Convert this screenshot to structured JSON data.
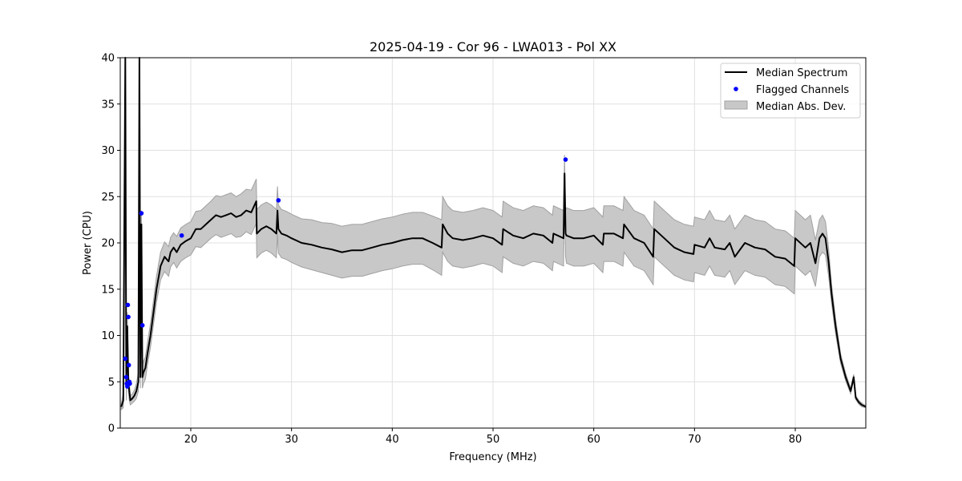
{
  "chart_data": {
    "type": "line",
    "title": "2025-04-19 - Cor 96 - LWA013 - Pol XX",
    "xlabel": "Frequency (MHz)",
    "ylabel": "Power (CPU)",
    "xlim": [
      13,
      87
    ],
    "ylim": [
      0,
      40
    ],
    "xticks": [
      20,
      30,
      40,
      50,
      60,
      70,
      80
    ],
    "yticks": [
      0,
      5,
      10,
      15,
      20,
      25,
      30,
      35,
      40
    ],
    "grid": true,
    "legend_position": "top-right",
    "legend": {
      "median": "Median Spectrum",
      "flagged": "Flagged Channels",
      "mad": "Median Abs. Dev."
    },
    "colors": {
      "median": "#000000",
      "flagged": "#0000ff",
      "band_fill": "#c8c8c8",
      "band_edge": "#a0a0a0"
    },
    "series": [
      {
        "name": "Median Spectrum",
        "x": [
          13.1,
          13.3,
          13.5,
          13.6,
          13.7,
          13.8,
          13.9,
          14.0,
          14.2,
          14.4,
          14.6,
          14.8,
          14.9,
          15.0,
          15.1,
          15.2,
          15.3,
          15.5,
          15.7,
          16.0,
          16.3,
          16.6,
          17.0,
          17.4,
          17.8,
          18.0,
          18.3,
          18.6,
          19.0,
          19.5,
          20.0,
          20.5,
          21.0,
          21.5,
          22.0,
          22.5,
          23.0,
          23.5,
          24.0,
          24.5,
          25.0,
          25.5,
          26.0,
          26.5,
          26.55,
          27.0,
          27.5,
          28.0,
          28.5,
          28.6,
          28.7,
          29.0,
          29.5,
          30.0,
          31.0,
          32.0,
          33.0,
          34.0,
          35.0,
          36.0,
          37.0,
          38.0,
          39.0,
          40.0,
          41.0,
          42.0,
          43.0,
          44.0,
          44.9,
          45.0,
          45.5,
          46.0,
          47.0,
          48.0,
          49.0,
          50.0,
          50.9,
          51.0,
          52.0,
          53.0,
          54.0,
          55.0,
          55.9,
          56.0,
          57.0,
          57.1,
          57.2,
          57.3,
          58.0,
          59.0,
          60.0,
          60.9,
          61.0,
          62.0,
          62.9,
          63.0,
          64.0,
          65.0,
          65.9,
          66.0,
          67.0,
          68.0,
          69.0,
          69.9,
          70.0,
          71.0,
          71.5,
          72.0,
          73.0,
          73.5,
          74.0,
          75.0,
          76.0,
          77.0,
          78.0,
          79.0,
          79.9,
          80.0,
          81.0,
          81.5,
          82.0,
          82.4,
          82.7,
          83.0,
          83.3,
          83.6,
          84.0,
          84.5,
          85.0,
          85.5,
          85.8,
          86.0,
          86.3,
          86.6,
          87.0
        ],
        "y": [
          2.3,
          3.0,
          40.0,
          4.5,
          11.0,
          5.0,
          4.0,
          3.0,
          3.2,
          3.5,
          4.0,
          5.0,
          40.0,
          5.5,
          22.0,
          5.5,
          6.0,
          6.5,
          8.0,
          10.0,
          12.5,
          15.0,
          17.5,
          18.5,
          18.0,
          19.0,
          19.5,
          19.0,
          19.8,
          20.2,
          20.5,
          21.5,
          21.5,
          22.0,
          22.5,
          23.0,
          22.8,
          23.0,
          23.2,
          22.8,
          23.0,
          23.5,
          23.3,
          24.5,
          21.0,
          21.5,
          21.8,
          21.5,
          21.0,
          23.5,
          21.5,
          21.0,
          20.8,
          20.5,
          20.0,
          19.8,
          19.5,
          19.3,
          19.0,
          19.2,
          19.2,
          19.5,
          19.8,
          20.0,
          20.3,
          20.5,
          20.5,
          20.0,
          19.5,
          22.0,
          21.0,
          20.5,
          20.3,
          20.5,
          20.8,
          20.5,
          19.8,
          21.5,
          20.8,
          20.5,
          21.0,
          20.8,
          20.0,
          21.0,
          20.5,
          27.5,
          21.0,
          20.8,
          20.5,
          20.5,
          20.8,
          19.8,
          21.0,
          21.0,
          20.5,
          22.0,
          20.5,
          20.0,
          18.5,
          21.5,
          20.5,
          19.5,
          19.0,
          18.8,
          19.8,
          19.5,
          20.5,
          19.5,
          19.3,
          20.0,
          18.5,
          20.0,
          19.5,
          19.3,
          18.5,
          18.3,
          17.5,
          20.5,
          19.5,
          20.0,
          17.8,
          20.5,
          21.0,
          20.5,
          18.0,
          14.5,
          11.0,
          7.5,
          5.5,
          4.0,
          5.5,
          3.3,
          2.8,
          2.5,
          2.3
        ],
        "mad_offset": [
          0.3,
          0.8,
          2.0,
          1.5,
          1.5,
          1.0,
          1.0,
          0.5,
          0.5,
          0.6,
          0.8,
          1.0,
          2.0,
          1.2,
          1.5,
          1.2,
          1.2,
          1.2,
          1.2,
          1.3,
          1.3,
          1.4,
          1.5,
          1.6,
          1.6,
          1.6,
          1.6,
          1.7,
          1.8,
          1.8,
          1.8,
          1.9,
          2.0,
          2.0,
          2.0,
          2.1,
          2.2,
          2.2,
          2.2,
          2.2,
          2.3,
          2.3,
          2.4,
          2.4,
          2.6,
          2.6,
          2.6,
          2.6,
          2.6,
          2.6,
          2.6,
          2.6,
          2.6,
          2.6,
          2.6,
          2.7,
          2.7,
          2.8,
          2.8,
          2.8,
          2.8,
          2.8,
          2.8,
          2.8,
          2.8,
          2.8,
          2.8,
          2.9,
          3.0,
          3.0,
          3.0,
          3.0,
          3.0,
          3.0,
          3.0,
          3.0,
          3.0,
          3.0,
          3.0,
          3.0,
          3.0,
          3.0,
          3.0,
          3.0,
          3.0,
          2.0,
          2.5,
          3.0,
          3.0,
          3.0,
          3.0,
          3.0,
          3.0,
          3.0,
          3.0,
          3.0,
          3.0,
          3.0,
          3.0,
          3.0,
          3.0,
          3.0,
          3.0,
          3.0,
          3.0,
          3.0,
          3.0,
          3.0,
          3.0,
          3.0,
          3.0,
          3.0,
          3.0,
          3.0,
          3.0,
          3.0,
          3.0,
          3.0,
          3.0,
          3.0,
          2.5,
          2.0,
          2.0,
          1.8,
          1.5,
          1.0,
          0.8,
          0.5,
          0.4,
          0.3,
          0.3,
          0.2,
          0.2,
          0.2,
          0.1
        ]
      },
      {
        "name": "Flagged Channels",
        "x": [
          13.5,
          13.6,
          13.65,
          13.7,
          13.75,
          13.8,
          13.85,
          13.9,
          13.95,
          15.1,
          15.2,
          19.1,
          28.7,
          57.2
        ],
        "y": [
          7.5,
          5.5,
          4.8,
          4.5,
          13.3,
          12.0,
          6.8,
          5.0,
          4.8,
          23.2,
          11.1,
          20.8,
          24.6,
          29.0
        ]
      }
    ]
  }
}
